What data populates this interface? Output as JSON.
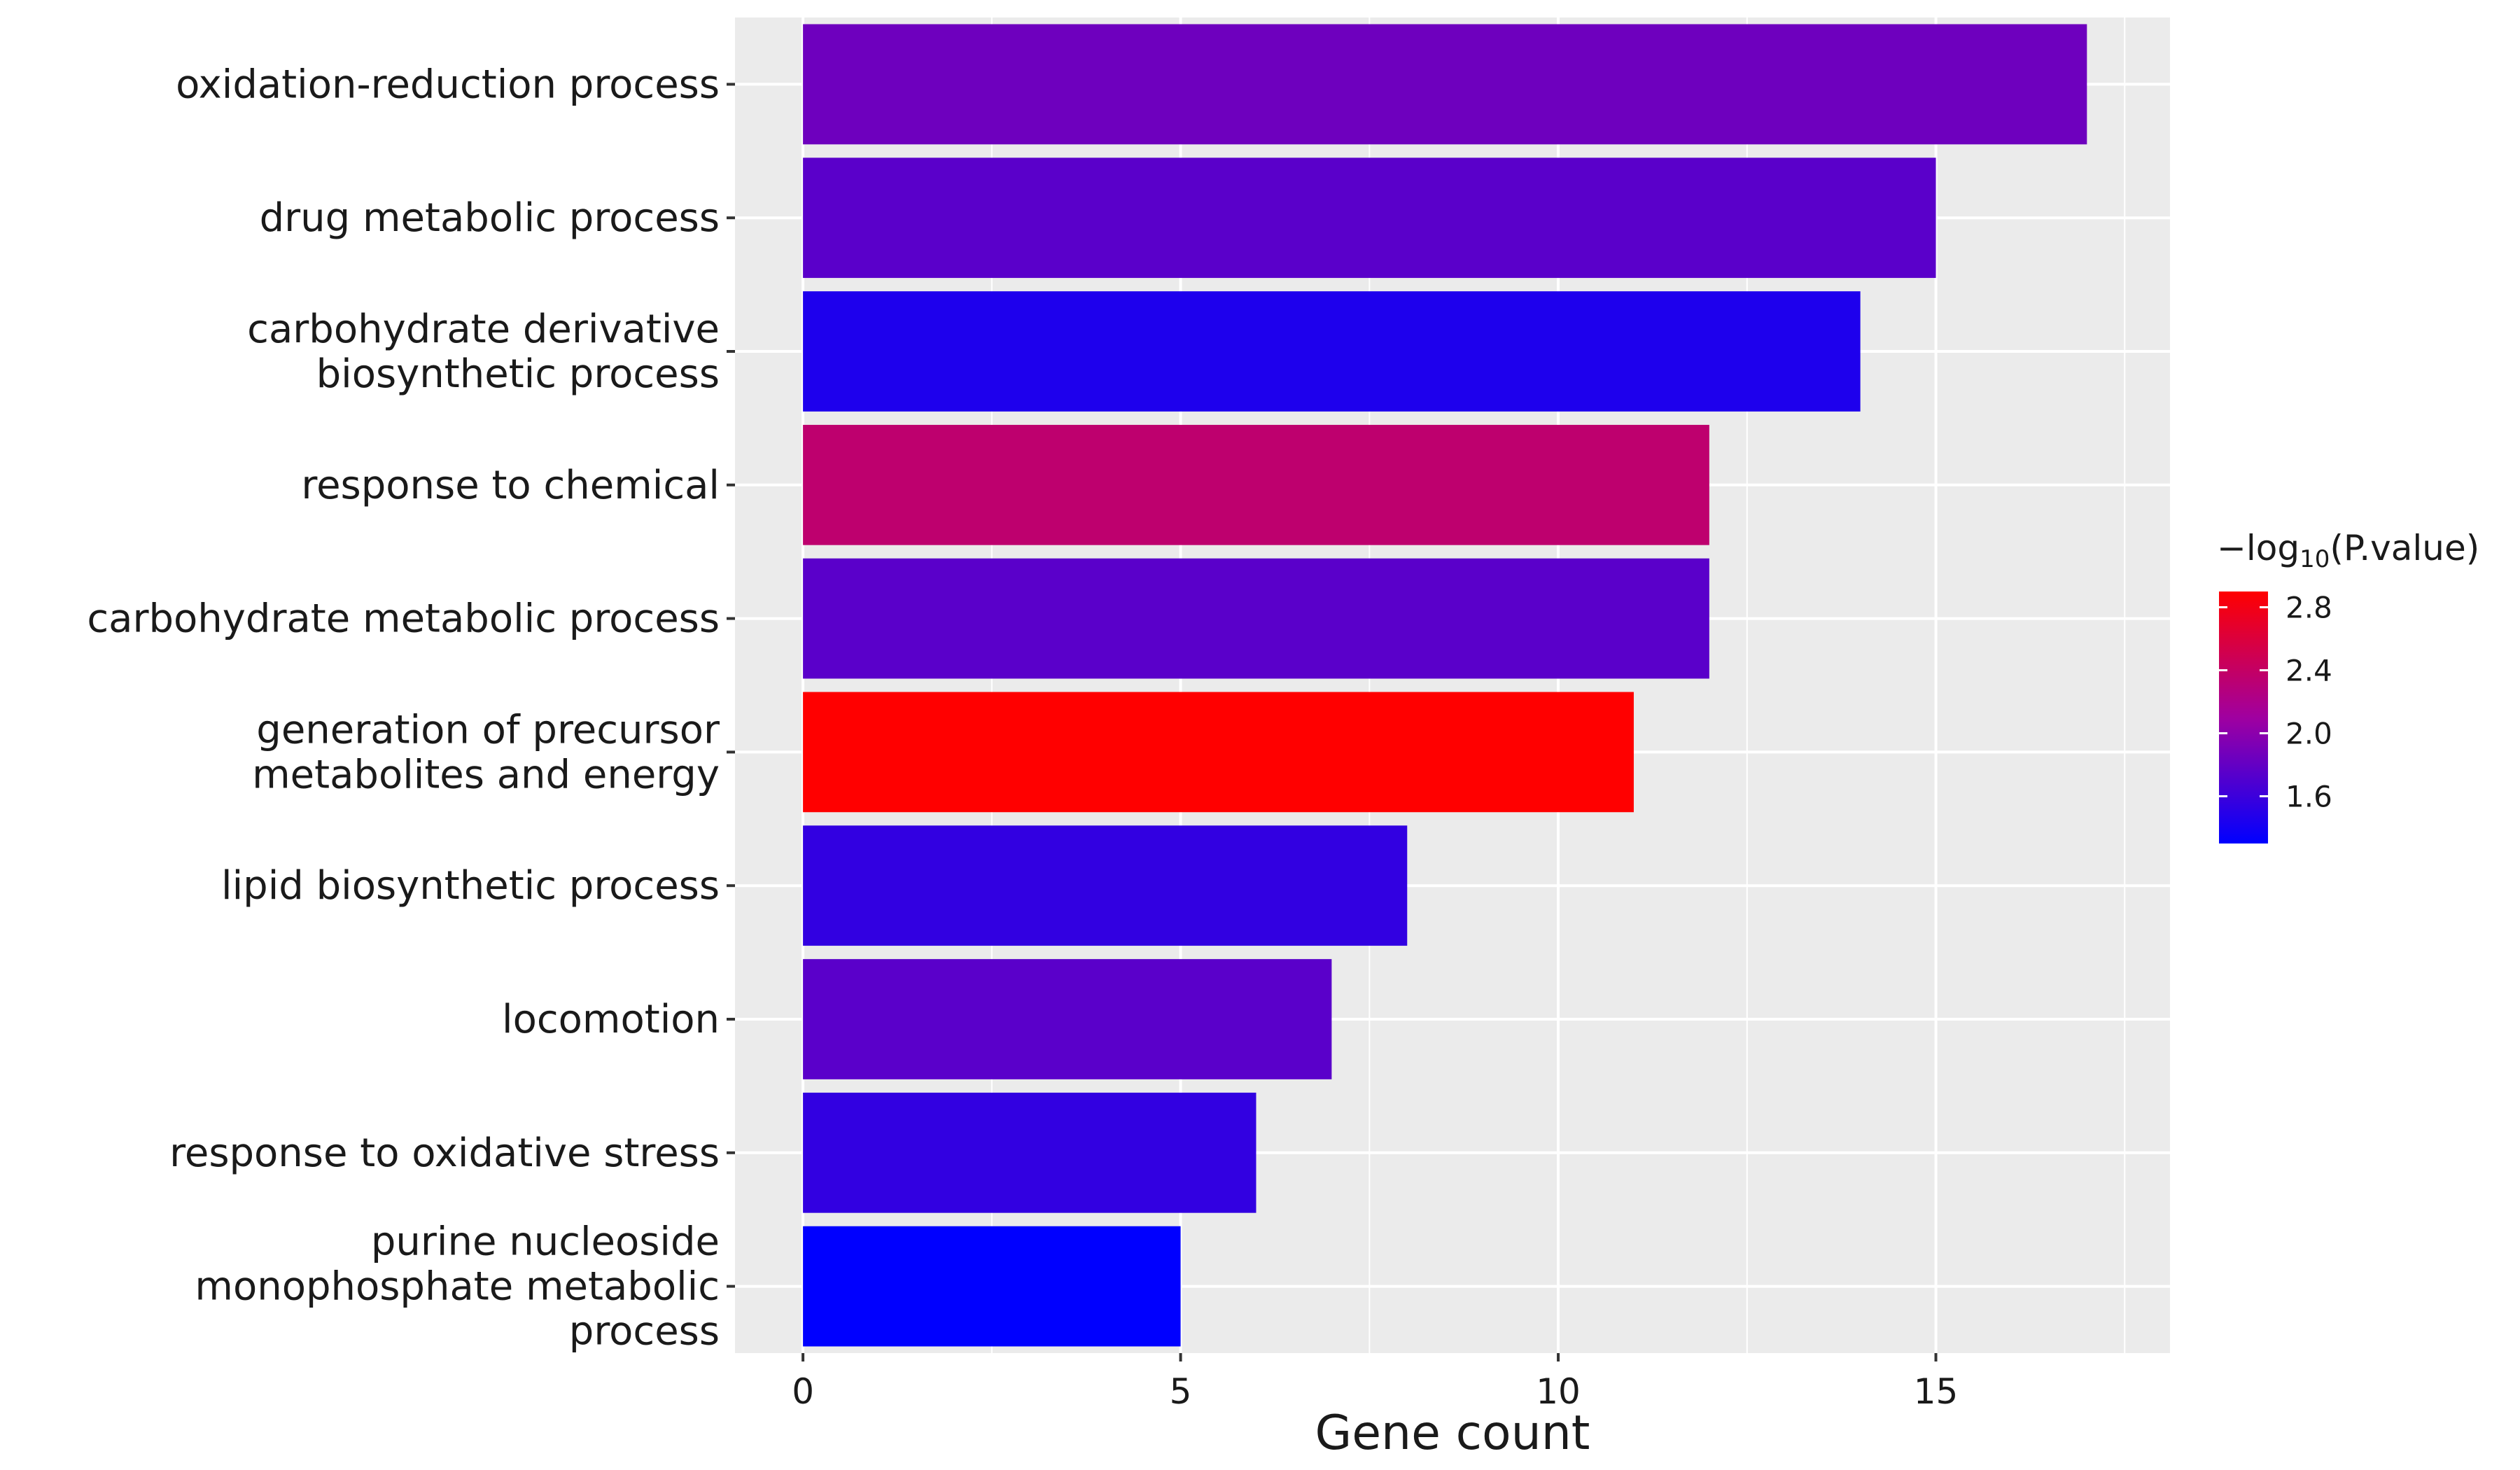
{
  "chart_data": {
    "type": "bar",
    "orientation": "horizontal",
    "xlabel": "Gene count",
    "ylabel": "",
    "xlim": [
      -0.9,
      18.1
    ],
    "xticks": [
      0,
      5,
      10,
      15
    ],
    "xtick_labels": [
      "0",
      "5",
      "10",
      "15"
    ],
    "categories": [
      "oxidation-reduction process",
      "drug metabolic process",
      "carbohydrate derivative biosynthetic process",
      "response to chemical",
      "carbohydrate metabolic process",
      "generation of precursor metabolites and energy",
      "lipid biosynthetic process",
      "locomotion",
      "response to oxidative stress",
      "purine nucleoside monophosphate metabolic process"
    ],
    "category_label_lines": [
      [
        "oxidation-reduction process"
      ],
      [
        "drug metabolic process"
      ],
      [
        "carbohydrate derivative",
        "biosynthetic process"
      ],
      [
        "response to chemical"
      ],
      [
        "carbohydrate metabolic process"
      ],
      [
        "generation of precursor",
        "metabolites and energy"
      ],
      [
        "lipid biosynthetic process"
      ],
      [
        "locomotion"
      ],
      [
        "response to oxidative stress"
      ],
      [
        "purine nucleoside",
        "monophosphate metabolic",
        "process"
      ]
    ],
    "values": [
      17,
      15,
      14,
      12,
      12,
      11,
      8,
      7,
      6,
      5
    ],
    "color_values": [
      1.85,
      1.75,
      1.45,
      2.35,
      1.75,
      2.9,
      1.55,
      1.75,
      1.55,
      1.3
    ],
    "legend": {
      "title_prefix": "−log",
      "title_subscript": "10",
      "title_suffix": "(P.value)",
      "placement": "right",
      "range": [
        1.3,
        2.9
      ],
      "ticks": [
        1.6,
        2.0,
        2.4,
        2.8
      ],
      "tick_labels": [
        "1.6",
        "2.0",
        "2.4",
        "2.8"
      ],
      "low_color": "#0000ff",
      "mid_color": "#a000a0",
      "high_color": "#ff0000"
    },
    "panel_background": "#ebebeb",
    "grid": true
  }
}
